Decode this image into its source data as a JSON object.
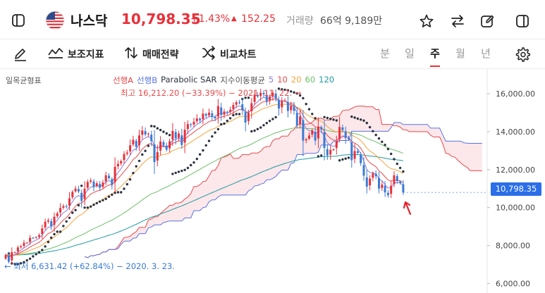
{
  "header": {
    "index_name": "나스닥",
    "price": "10,798.35",
    "change_pct": "+1.43%",
    "change_arrow": "▲",
    "change_value": "152.25",
    "volume_label": "거래량",
    "volume_value": "66억 9,189만"
  },
  "toolbar": {
    "indicator_label": "보조지표",
    "trade_strategy_label": "매매전략",
    "compare_label": "비교차트",
    "periods": [
      "분",
      "일",
      "주",
      "월",
      "년"
    ],
    "active_period": "주"
  },
  "colors": {
    "up": "#e8303a",
    "down": "#3a7bd5",
    "price_tag": "#2a6ee8",
    "span_a": "#e84a4a",
    "span_b": "#5a74e0",
    "cloud": "#fbe3e6",
    "sar": "#2b3240",
    "ma5": "#8b7be0",
    "ma10": "#e84a4a",
    "ma20": "#f3a33c",
    "ma60": "#6fbf6a",
    "ma120": "#1f9aa0"
  },
  "icons": {
    "sidebar_toggle": "sidebar-icon",
    "flag": "us-flag-icon",
    "favorite": "star-icon",
    "swap": "swap-icon",
    "edit": "edit-icon",
    "panel": "panel-icon",
    "draw": "pencil-icon",
    "indicator": "indicator-icon",
    "strategy": "strategy-icon",
    "compare": "compare-icon",
    "settings": "gear-icon"
  },
  "chart_data": {
    "type": "candlestick",
    "ylim": [
      5500,
      17300
    ],
    "y_ticks": [
      "16,000.00",
      "14,000.00",
      "12,000.00",
      "10,000.00",
      "8,000.00",
      "6,000.00"
    ],
    "y_tick_values": [
      16000,
      14000,
      12000,
      10000,
      8000,
      6000
    ],
    "current_price_label": "10,798.35",
    "current_price": 10798.35,
    "legend": {
      "ichimoku": "일목균형표",
      "span_a": "선행A",
      "span_b": "선행B",
      "sar": "Parabolic SAR",
      "ma_group": "지수이동평균",
      "ma_periods": [
        "5",
        "10",
        "20",
        "60",
        "120"
      ]
    },
    "annotations": {
      "high": "최고 16,212.20 (−33.39%) − 2021. 11. 22.",
      "high_value": 16212.2,
      "low": "최저 6,631.42 (+62.84%) − 2020. 3. 23.",
      "low_value": 6631.42
    },
    "closes": [
      7500,
      7150,
      7650,
      7650,
      7900,
      7960,
      8150,
      8150,
      8410,
      8400,
      8450,
      8550,
      8900,
      9250,
      9330,
      9020,
      9520,
      9700,
      9980,
      10080,
      10030,
      10490,
      10830,
      11000,
      10850,
      10350,
      10990,
      11350,
      11430,
      11100,
      11280,
      11050,
      11320,
      11700,
      11550,
      11200,
      12150,
      12300,
      12450,
      12820,
      12900,
      13280,
      13570,
      13200,
      13800,
      14060,
      13850,
      13900,
      13500,
      12400,
      12920,
      13480,
      13300,
      13050,
      13500,
      14040,
      13650,
      13900,
      13300,
      14100,
      14400,
      14350,
      14520,
      14700,
      14600,
      14950,
      14840,
      15000,
      14780,
      14700,
      15350,
      14880,
      15060,
      15020,
      15150,
      15400,
      15550,
      15500,
      15130,
      14480,
      15000,
      15500,
      15950,
      15850,
      16050,
      15970,
      15600,
      15850,
      16050,
      15750,
      15220,
      15630,
      15630,
      15090,
      15360,
      15100,
      14340,
      14800,
      13530,
      13600,
      13800,
      14070,
      13530,
      14260,
      14120,
      13140,
      12750,
      13040,
      13070,
      13500,
      14250,
      14080,
      13670,
      13600,
      12500,
      12980,
      12880,
      12340,
      11680,
      11110,
      11530,
      11800,
      11650,
      11000,
      11210,
      10800,
      10650,
      11150,
      11700,
      11400,
      11300,
      10798.35
    ],
    "ma_periods": [
      5,
      10,
      20,
      60,
      120
    ],
    "ichimoku_params": [
      9,
      26,
      52
    ],
    "sar_params": [
      0.02,
      0.2
    ]
  }
}
